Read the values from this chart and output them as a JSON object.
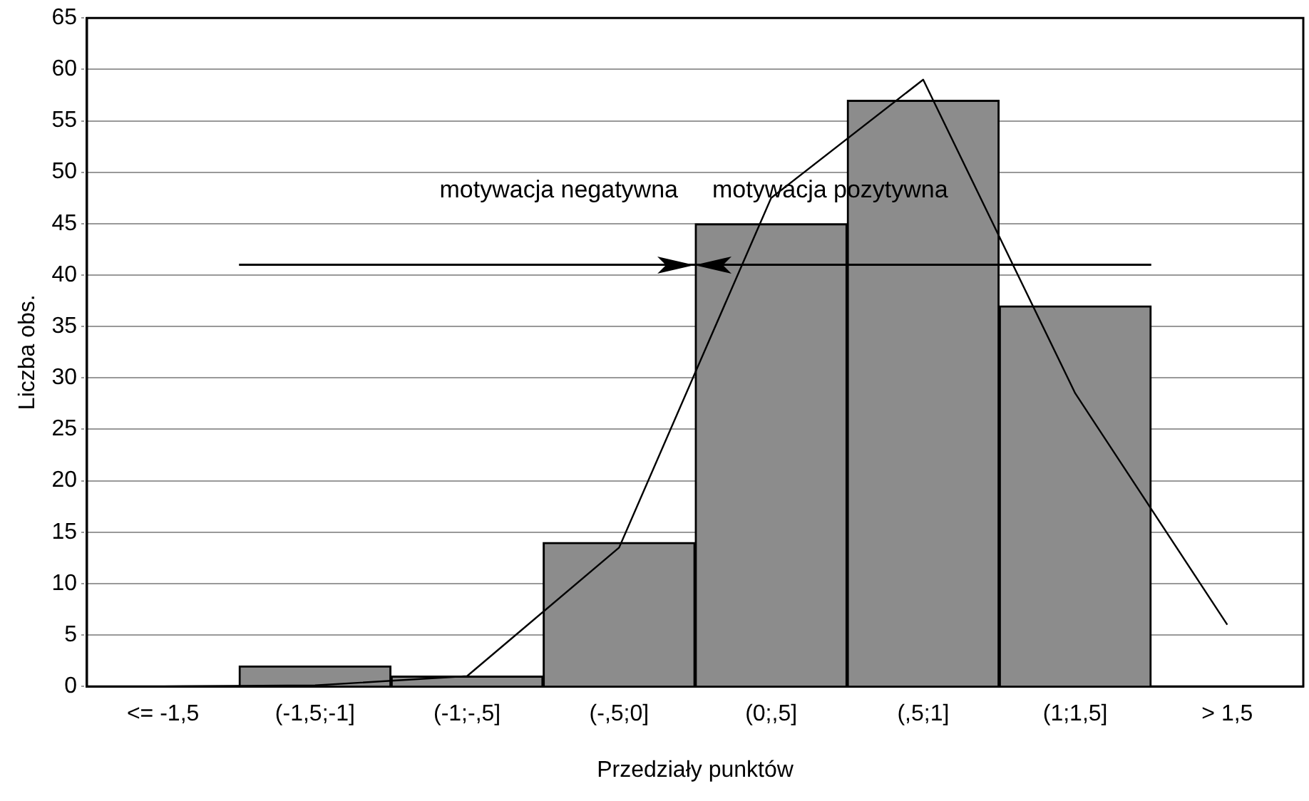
{
  "chart_data": {
    "type": "bar",
    "xlabel": "Przedziały punktów",
    "ylabel": "Liczba obs.",
    "categories": [
      "<= -1,5",
      "(-1,5;-1]",
      "(-1;-,5]",
      "(-,5;0]",
      "(0;,5]",
      "(,5;1]",
      "(1;1,5]",
      "> 1,5"
    ],
    "series": [
      {
        "color": "#8c8c8c",
        "values": [
          0,
          2,
          1,
          14,
          45,
          57,
          37,
          0
        ]
      },
      {
        "type": "line",
        "color": "#000000",
        "values": [
          0,
          0.1,
          1,
          13.5,
          47.5,
          59,
          28.5,
          6
        ]
      }
    ],
    "ylim": [
      0,
      65
    ],
    "yticks": [
      0,
      5,
      10,
      15,
      20,
      25,
      30,
      35,
      40,
      45,
      50,
      55,
      60,
      65
    ],
    "grid": "y",
    "legend": false,
    "marker": "none",
    "line_style": "solid",
    "ref_lines": [
      {
        "axis": "y",
        "value": 41
      }
    ],
    "annotations": [
      {
        "text": "motywacja negatywna",
        "y": 41
      },
      {
        "text": "motywacja pozytywna",
        "y": 41
      }
    ]
  }
}
